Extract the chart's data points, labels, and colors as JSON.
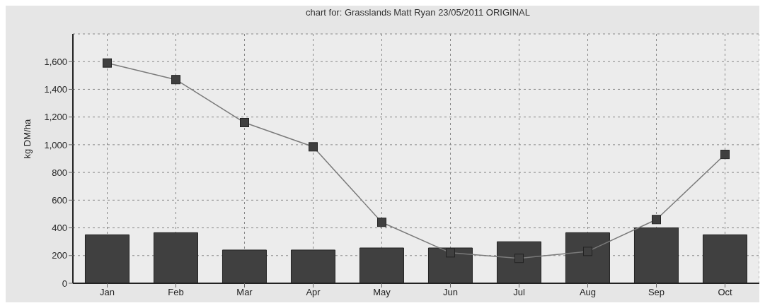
{
  "chart_data": {
    "type": "bar",
    "title": "chart for: Grasslands Matt Ryan 23/05/2011 ORIGINAL",
    "ylabel": "kg DM/ha",
    "categories": [
      "Jan",
      "Feb",
      "Mar",
      "Apr",
      "May",
      "Jun",
      "Jul",
      "Aug",
      "Sep",
      "Oct"
    ],
    "series": [
      {
        "color": "#404040",
        "values": [
          350,
          365,
          240,
          240,
          255,
          255,
          300,
          365,
          400,
          350
        ]
      },
      {
        "type": "line",
        "color": "#7a7a7a",
        "marker": "square",
        "values": [
          1590,
          1470,
          1160,
          985,
          440,
          220,
          180,
          230,
          460,
          930
        ]
      }
    ],
    "ylim": [
      0,
      1800
    ],
    "yticks": [
      0,
      200,
      400,
      600,
      800,
      {
        "value": 1000,
        "label": "1,000"
      },
      {
        "value": 1200,
        "label": "1,200"
      },
      {
        "value": 1400,
        "label": "1,400"
      },
      {
        "value": 1600,
        "label": "1,600"
      }
    ],
    "grid": true
  }
}
